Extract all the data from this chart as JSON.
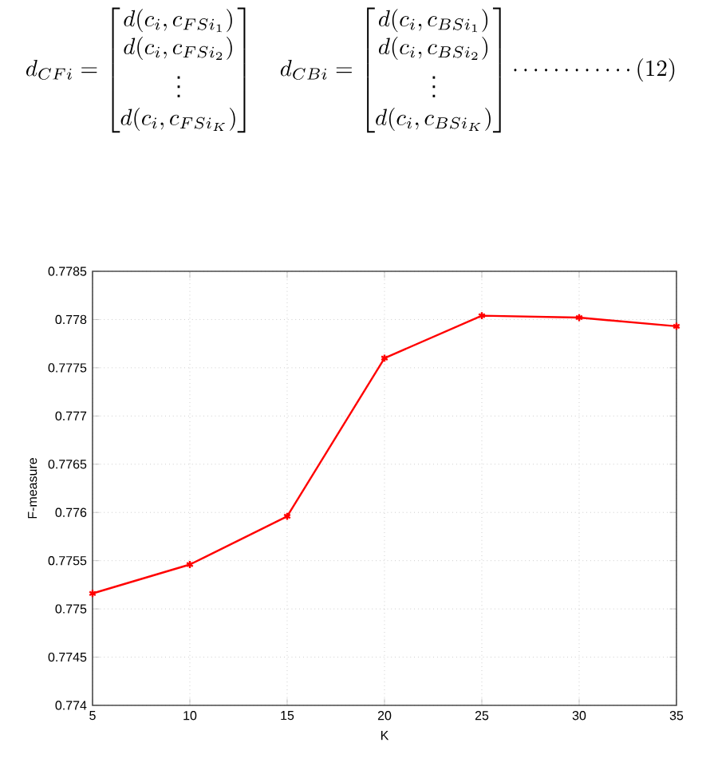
{
  "chart_data": {
    "type": "line",
    "xlabel": "K",
    "ylabel": "F-measure",
    "annotations": [
      "d_{CFi}=\\begin{bmatrix}d(c_i,c_{FSi_1})\\\\ d(c_i,c_{FSi_2})\\\\ \\vdots\\\\ d(c_i,c_{FSi_K})\\end{bmatrix}\\quad d_{CBi}=\\begin{bmatrix}d(c_i,c_{BSi_1})\\\\ d(c_i,c_{BSi_2})\\\\ \\vdots\\\\ d(c_i,c_{BSi_K})\\end{bmatrix}\\cdots\\cdots\\cdots\\cdots(12)"
    ],
    "x": [
      5,
      10,
      15,
      20,
      25,
      30,
      35
    ],
    "series": [
      {
        "color": "#ff0000",
        "values": [
          0.77516,
          0.77546,
          0.77596,
          0.7776,
          0.77804,
          0.77802,
          0.77793
        ]
      }
    ],
    "xlim": [
      5,
      35
    ],
    "xticks": [
      5,
      10,
      15,
      20,
      25,
      30,
      35
    ],
    "ylim": [
      0.774,
      0.7785
    ],
    "yticks": [
      0.774,
      0.7745,
      0.775,
      0.7755,
      0.776,
      0.7765,
      0.777,
      0.7775,
      0.778,
      0.7785
    ],
    "grid": true,
    "marker": "cross",
    "line_style": "solid"
  }
}
